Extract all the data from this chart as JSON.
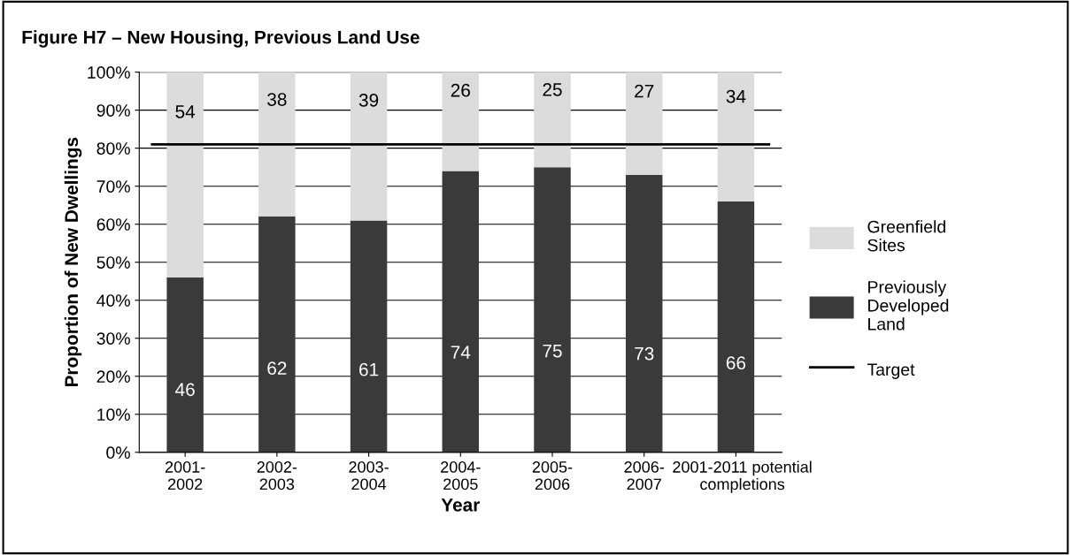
{
  "chart_data": {
    "type": "bar",
    "title": "Figure H7 – New Housing, Previous Land Use",
    "xlabel": "Year",
    "ylabel": "Proportion of New Dwellings",
    "categories": [
      "2001-\n2002",
      "2002-\n2003",
      "2003-\n2004",
      "2004-\n2005",
      "2005-\n2006",
      "2006-\n2007",
      "2001-2011 potential\ncompletions"
    ],
    "stacked": true,
    "series": [
      {
        "name": "Previously\nDeveloped\nLand",
        "color": "#3a3a3a",
        "values": [
          46,
          62,
          61,
          74,
          75,
          73,
          66
        ]
      },
      {
        "name": "Greenfield\nSites",
        "color": "#dcdcdc",
        "values": [
          54,
          38,
          39,
          26,
          25,
          27,
          34
        ]
      }
    ],
    "ref_lines": [
      {
        "axis": "y",
        "value": 81,
        "label": "Target",
        "color": "#000000"
      }
    ],
    "ylim": [
      0,
      100
    ],
    "yticks": [
      {
        "value": 0,
        "label": "0%"
      },
      {
        "value": 10,
        "label": "10%"
      },
      {
        "value": 20,
        "label": "20%"
      },
      {
        "value": 30,
        "label": "30%"
      },
      {
        "value": 40,
        "label": "40%"
      },
      {
        "value": 50,
        "label": "50%"
      },
      {
        "value": 60,
        "label": "60%"
      },
      {
        "value": 70,
        "label": "70%"
      },
      {
        "value": 80,
        "label": "80%"
      },
      {
        "value": 90,
        "label": "90%"
      },
      {
        "value": 100,
        "label": "100%"
      }
    ],
    "grid": "y",
    "legend": "right",
    "data_labels": true
  }
}
